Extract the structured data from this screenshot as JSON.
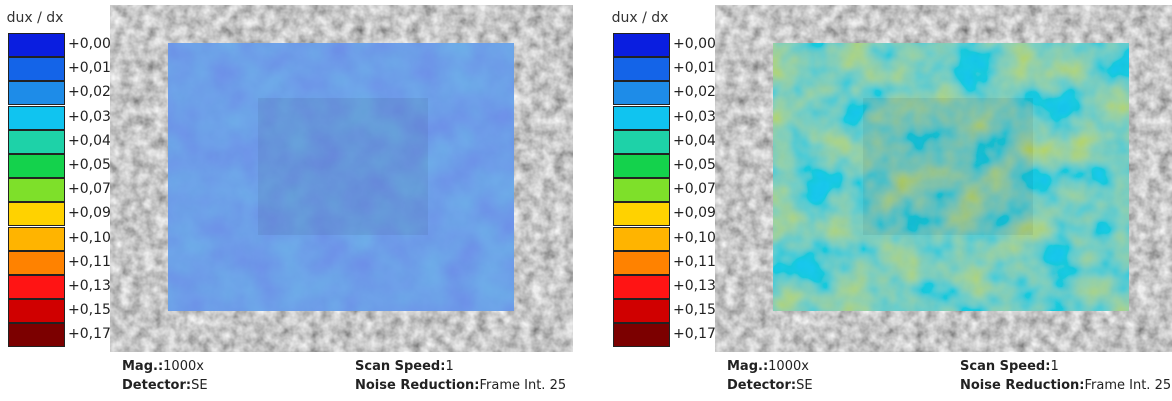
{
  "panels": [
    {
      "legend": {
        "title": "dux / dx",
        "labels": [
          "+0,00",
          "+0,01",
          "+0,02",
          "+0,03",
          "+0,04",
          "+0,05",
          "+0,07",
          "+0,09",
          "+0,10",
          "+0,11",
          "+0,13",
          "+0,15",
          "+0,17"
        ],
        "colors": [
          "#0a1ee0",
          "#1464e8",
          "#1e8ce8",
          "#10c4f0",
          "#1ed2a8",
          "#14d24c",
          "#7ee02a",
          "#ffd200",
          "#ffb400",
          "#ff8200",
          "#ff1414",
          "#d00000",
          "#7c0000"
        ]
      },
      "overlay": "blue",
      "info": [
        {
          "label": "Mag.:",
          "value": "1000x"
        },
        {
          "label": "Detector:",
          "value": "SE"
        },
        {
          "label": "Scan Speed:",
          "value": "1"
        },
        {
          "label": "Noise Reduction:",
          "value": "Frame Int. 25"
        }
      ]
    },
    {
      "legend": {
        "title": "dux / dx",
        "labels": [
          "+0,00",
          "+0,01",
          "+0,02",
          "+0,03",
          "+0,04",
          "+0,05",
          "+0,07",
          "+0,09",
          "+0,10",
          "+0,11",
          "+0,13",
          "+0,15",
          "+0,17"
        ],
        "colors": [
          "#0a1ee0",
          "#1464e8",
          "#1e8ce8",
          "#10c4f0",
          "#1ed2a8",
          "#14d24c",
          "#7ee02a",
          "#ffd200",
          "#ffb400",
          "#ff8200",
          "#ff1414",
          "#d00000",
          "#7c0000"
        ]
      },
      "overlay": "green",
      "info": [
        {
          "label": "Mag.:",
          "value": "1000x"
        },
        {
          "label": "Detector:",
          "value": "SE"
        },
        {
          "label": "Scan Speed:",
          "value": "1"
        },
        {
          "label": "Noise Reduction:",
          "value": "Frame Int. 25"
        }
      ]
    }
  ]
}
